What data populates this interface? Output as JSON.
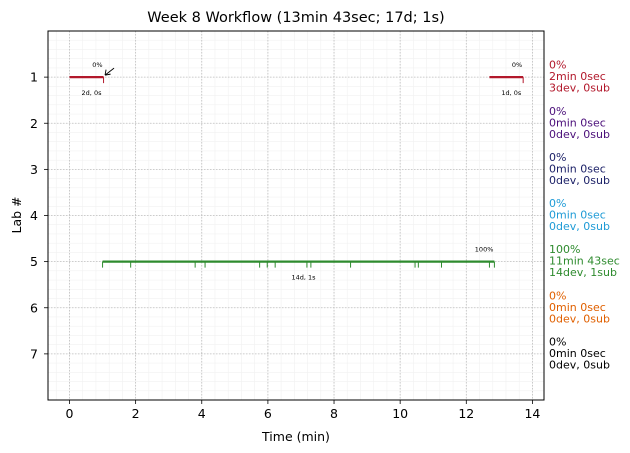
{
  "chart_data": {
    "type": "timeline",
    "title": "Week 8 Workflow (13min 43sec; 17d; 1s)",
    "xlabel": "Time (min)",
    "ylabel": "Lab #",
    "xlim": [
      -0.65,
      14.35
    ],
    "ylim": [
      8,
      0
    ],
    "xticks": [
      0,
      2,
      4,
      6,
      8,
      10,
      12,
      14
    ],
    "yticks": [
      1,
      2,
      3,
      4,
      5,
      6,
      7
    ],
    "grid": true,
    "lanes": [
      {
        "lab": 1,
        "color": "#b2182b",
        "segments": [
          {
            "start": 0.0,
            "end": 1.03,
            "pct": "0%",
            "label": "2d, 0s",
            "arrow": true
          },
          {
            "start": 12.7,
            "end": 13.72,
            "pct": "0%",
            "label": "1d, 0s",
            "arrow": false
          }
        ],
        "marks": [
          1.03,
          13.72
        ],
        "summary": [
          "0%",
          "2min 0sec",
          "3dev, 0sub"
        ]
      },
      {
        "lab": 2,
        "color": "#4b0f7a",
        "segments": [],
        "marks": [],
        "summary": [
          "0%",
          "0min 0sec",
          "0dev, 0sub"
        ]
      },
      {
        "lab": 3,
        "color": "#1a1f66",
        "segments": [],
        "marks": [],
        "summary": [
          "0%",
          "0min 0sec",
          "0dev, 0sub"
        ]
      },
      {
        "lab": 4,
        "color": "#1f9bd6",
        "segments": [],
        "marks": [],
        "summary": [
          "0%",
          "0min 0sec",
          "0dev, 0sub"
        ]
      },
      {
        "lab": 5,
        "color": "#2e8b2e",
        "segments": [
          {
            "start": 1.0,
            "end": 12.85,
            "pct": "100%",
            "label": "14d, 1s",
            "arrow": false
          }
        ],
        "marks": [
          1.0,
          1.85,
          3.8,
          4.1,
          5.75,
          5.98,
          6.22,
          7.18,
          7.3,
          8.5,
          10.45,
          10.55,
          11.25,
          12.7,
          12.85
        ],
        "summary": [
          "100%",
          "11min 43sec",
          "14dev, 1sub"
        ]
      },
      {
        "lab": 6,
        "color": "#e06000",
        "segments": [],
        "marks": [],
        "summary": [
          "0%",
          "0min 0sec",
          "0dev, 0sub"
        ]
      },
      {
        "lab": 7,
        "color": "#000000",
        "segments": [],
        "marks": [],
        "summary": [
          "0%",
          "0min 0sec",
          "0dev, 0sub"
        ]
      }
    ]
  }
}
